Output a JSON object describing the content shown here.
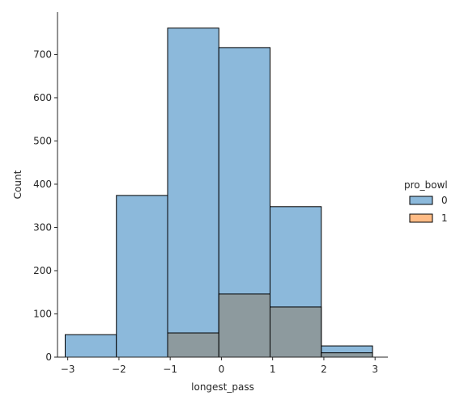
{
  "chart_data": {
    "type": "bar",
    "subtype": "histogram-overlay",
    "xlabel": "longest_pass",
    "ylabel": "Count",
    "xlim": [
      -3.2,
      3.25
    ],
    "ylim": [
      0,
      798
    ],
    "x_ticks": [
      -3,
      -2,
      -1,
      0,
      1,
      2,
      3
    ],
    "y_ticks": [
      0,
      100,
      200,
      300,
      400,
      500,
      600,
      700
    ],
    "legend": {
      "title": "pro_bowl",
      "placement": "right"
    },
    "series": [
      {
        "name": "0",
        "color": "#8cb9db",
        "bins": [
          {
            "x0": -3.05,
            "x1": -2.05,
            "count": 52
          },
          {
            "x0": -2.05,
            "x1": -1.05,
            "count": 374
          },
          {
            "x0": -1.05,
            "x1": -0.05,
            "count": 761
          },
          {
            "x0": -0.05,
            "x1": 0.95,
            "count": 716
          },
          {
            "x0": 0.95,
            "x1": 1.95,
            "count": 348
          },
          {
            "x0": 1.95,
            "x1": 2.95,
            "count": 26
          }
        ]
      },
      {
        "name": "1",
        "color": "#8d9a9e",
        "legend_color": "#ffbc86",
        "bins": [
          {
            "x0": -1.05,
            "x1": -0.05,
            "count": 56
          },
          {
            "x0": -0.05,
            "x1": 0.95,
            "count": 146
          },
          {
            "x0": 0.95,
            "x1": 1.95,
            "count": 116
          },
          {
            "x0": 1.95,
            "x1": 2.95,
            "count": 10
          }
        ]
      }
    ]
  }
}
